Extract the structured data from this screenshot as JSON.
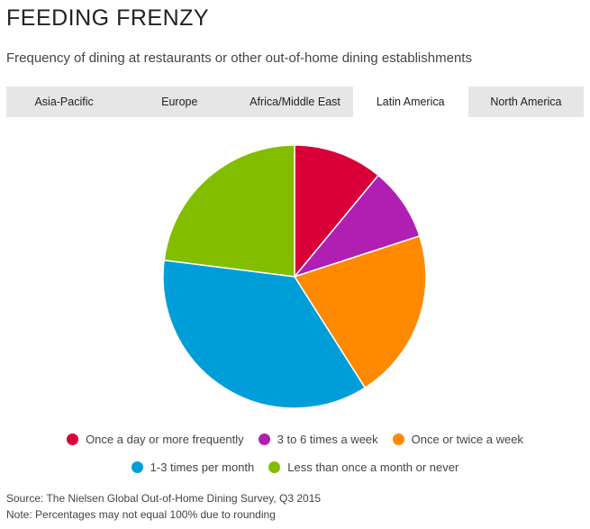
{
  "chart_data": {
    "type": "pie",
    "title": "FEEDING FRENZY",
    "subtitle": "Frequency of dining at restaurants or other out-of-home dining establishments",
    "tabs": [
      "Asia-Pacific",
      "Europe",
      "Africa/Middle East",
      "Latin America",
      "North America"
    ],
    "active_tab": 3,
    "categories": [
      "Once a day or more frequently",
      "3 to 6 times a week",
      "Once or twice a week",
      "1-3 times per month",
      "Less than once a month or never"
    ],
    "values": [
      11,
      9,
      21,
      36,
      23
    ],
    "colors": [
      "#d9003a",
      "#b11eb2",
      "#ff8a00",
      "#009ed8",
      "#83bd00"
    ],
    "source": "Source: The Nielsen Global Out-of-Home Dining Survey, Q3 2015",
    "note": "Note: Percentages may not equal 100% due to rounding"
  }
}
